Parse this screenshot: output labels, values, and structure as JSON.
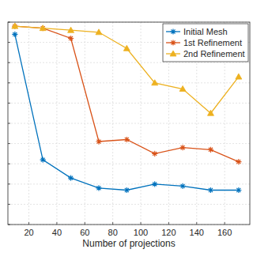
{
  "chart_data": {
    "type": "line",
    "x_label": "Number of projections",
    "x": [
      10,
      30,
      50,
      70,
      90,
      110,
      130,
      150,
      170
    ],
    "series": [
      {
        "name": "Initial Mesh",
        "color": "#0072bd",
        "marker": "asterisk",
        "values": [
          0.94,
          0.32,
          0.23,
          0.18,
          0.17,
          0.2,
          0.19,
          0.17,
          0.17
        ]
      },
      {
        "name": "1st Refinement",
        "color": "#d95319",
        "marker": "asterisk",
        "values": [
          0.98,
          0.97,
          0.92,
          0.41,
          0.42,
          0.35,
          0.38,
          0.37,
          0.31
        ]
      },
      {
        "name": "2nd Refinement",
        "color": "#edb120",
        "marker": "triangle",
        "values": [
          0.98,
          0.97,
          0.96,
          0.95,
          0.87,
          0.7,
          0.67,
          0.55,
          0.73
        ]
      }
    ],
    "xlim": [
      5,
      178
    ],
    "xticks": [
      20,
      40,
      60,
      80,
      100,
      120,
      140,
      160
    ],
    "ylim": [
      0,
      1.0
    ],
    "yticks": [
      0,
      0.1,
      0.2,
      0.3,
      0.4,
      0.5,
      0.6,
      0.7,
      0.8,
      0.9,
      1.0
    ],
    "grid": true,
    "legend": "top-right",
    "tick_labels": "x"
  }
}
